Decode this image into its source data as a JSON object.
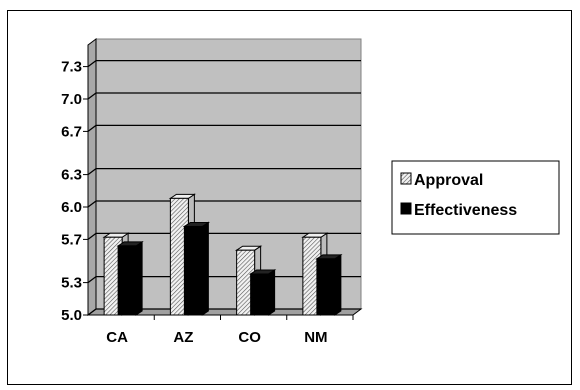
{
  "chart_data": {
    "type": "bar",
    "categories": [
      "CA",
      "AZ",
      "CO",
      "NM"
    ],
    "series": [
      {
        "name": "Approval",
        "values": [
          5.72,
          6.08,
          5.6,
          5.72
        ]
      },
      {
        "name": "Effectiveness",
        "values": [
          5.64,
          5.82,
          5.38,
          5.52
        ]
      }
    ],
    "yticks": [
      "5.0",
      "5.3",
      "5.7",
      "6.0",
      "6.3",
      "6.7",
      "7.0",
      "7.3"
    ],
    "ylim": [
      5.0,
      7.5
    ],
    "grid": true,
    "legend": "right",
    "colors": {
      "plot_bg": "#c0c0c0",
      "approval_fill": "#f2f2f2",
      "approval_hatch": "#555555",
      "effectiveness_fill": "#000000",
      "grid": "#000000"
    }
  }
}
